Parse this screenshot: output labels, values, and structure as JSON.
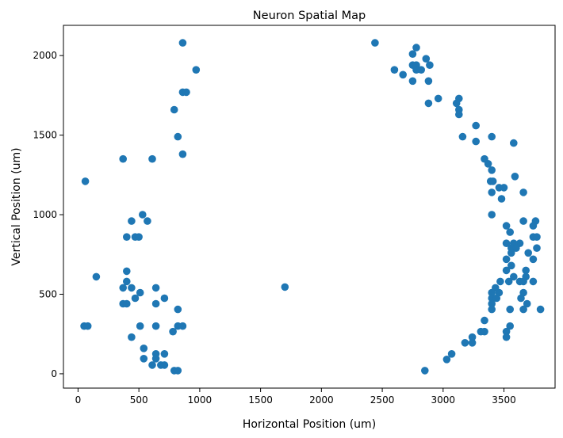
{
  "chart_data": {
    "type": "scatter",
    "title": "Neuron Spatial Map",
    "xlabel": "Horizontal Position (um)",
    "ylabel": "Vertical Position (um)",
    "xlim": [
      -120,
      3920
    ],
    "ylim": [
      -90,
      2190
    ],
    "xticks": [
      0,
      500,
      1000,
      1500,
      2000,
      2500,
      3000,
      3500
    ],
    "yticks": [
      0,
      500,
      1000,
      1500,
      2000
    ],
    "grid": false,
    "legend": "none",
    "marker_color": "#1f77b4",
    "series": [
      {
        "points": [
          [
            860,
            2080
          ],
          [
            970,
            1910
          ],
          [
            860,
            1770
          ],
          [
            890,
            1770
          ],
          [
            790,
            1660
          ],
          [
            820,
            1490
          ],
          [
            370,
            1350
          ],
          [
            610,
            1350
          ],
          [
            860,
            1380
          ],
          [
            60,
            1210
          ],
          [
            530,
            1000
          ],
          [
            440,
            960
          ],
          [
            570,
            960
          ],
          [
            400,
            860
          ],
          [
            470,
            860
          ],
          [
            500,
            860
          ],
          [
            150,
            610
          ],
          [
            400,
            645
          ],
          [
            400,
            580
          ],
          [
            370,
            540
          ],
          [
            440,
            540
          ],
          [
            640,
            540
          ],
          [
            510,
            510
          ],
          [
            470,
            475
          ],
          [
            710,
            475
          ],
          [
            370,
            440
          ],
          [
            400,
            440
          ],
          [
            640,
            440
          ],
          [
            820,
            405
          ],
          [
            50,
            300
          ],
          [
            80,
            300
          ],
          [
            510,
            300
          ],
          [
            640,
            300
          ],
          [
            820,
            300
          ],
          [
            860,
            300
          ],
          [
            780,
            265
          ],
          [
            440,
            230
          ],
          [
            540,
            160
          ],
          [
            640,
            125
          ],
          [
            710,
            125
          ],
          [
            540,
            95
          ],
          [
            640,
            95
          ],
          [
            610,
            55
          ],
          [
            680,
            55
          ],
          [
            710,
            55
          ],
          [
            790,
            20
          ],
          [
            820,
            20
          ],
          [
            1700,
            545
          ],
          [
            2440,
            2080
          ],
          [
            2780,
            2050
          ],
          [
            2750,
            2010
          ],
          [
            2860,
            1980
          ],
          [
            2750,
            1940
          ],
          [
            2780,
            1940
          ],
          [
            2890,
            1940
          ],
          [
            2780,
            1910
          ],
          [
            2600,
            1910
          ],
          [
            2820,
            1910
          ],
          [
            2670,
            1880
          ],
          [
            2750,
            1840
          ],
          [
            2880,
            1840
          ],
          [
            3130,
            1730
          ],
          [
            2960,
            1730
          ],
          [
            2880,
            1700
          ],
          [
            3110,
            1700
          ],
          [
            3130,
            1660
          ],
          [
            3130,
            1630
          ],
          [
            3270,
            1560
          ],
          [
            3160,
            1490
          ],
          [
            3400,
            1490
          ],
          [
            3270,
            1460
          ],
          [
            3580,
            1450
          ],
          [
            3340,
            1350
          ],
          [
            3370,
            1320
          ],
          [
            3400,
            1280
          ],
          [
            3590,
            1240
          ],
          [
            3390,
            1210
          ],
          [
            3410,
            1210
          ],
          [
            3460,
            1170
          ],
          [
            3500,
            1170
          ],
          [
            3400,
            1140
          ],
          [
            3660,
            1140
          ],
          [
            3480,
            1100
          ],
          [
            3400,
            1000
          ],
          [
            3660,
            960
          ],
          [
            3760,
            960
          ],
          [
            3520,
            930
          ],
          [
            3740,
            930
          ],
          [
            3550,
            890
          ],
          [
            3740,
            860
          ],
          [
            3770,
            860
          ],
          [
            3630,
            820
          ],
          [
            3520,
            820
          ],
          [
            3580,
            820
          ],
          [
            3560,
            790
          ],
          [
            3600,
            790
          ],
          [
            3770,
            790
          ],
          [
            3560,
            760
          ],
          [
            3700,
            760
          ],
          [
            3740,
            720
          ],
          [
            3520,
            720
          ],
          [
            3560,
            680
          ],
          [
            3520,
            650
          ],
          [
            3680,
            650
          ],
          [
            3580,
            610
          ],
          [
            3680,
            610
          ],
          [
            3470,
            580
          ],
          [
            3540,
            580
          ],
          [
            3630,
            580
          ],
          [
            3660,
            580
          ],
          [
            3740,
            580
          ],
          [
            3430,
            540
          ],
          [
            3400,
            510
          ],
          [
            3460,
            510
          ],
          [
            3660,
            510
          ],
          [
            3640,
            475
          ],
          [
            3400,
            475
          ],
          [
            3440,
            475
          ],
          [
            3690,
            440
          ],
          [
            3400,
            440
          ],
          [
            3400,
            405
          ],
          [
            3550,
            405
          ],
          [
            3660,
            405
          ],
          [
            3800,
            405
          ],
          [
            3340,
            335
          ],
          [
            3550,
            300
          ],
          [
            3310,
            265
          ],
          [
            3340,
            265
          ],
          [
            3520,
            265
          ],
          [
            3240,
            230
          ],
          [
            3520,
            230
          ],
          [
            3180,
            195
          ],
          [
            3240,
            195
          ],
          [
            3070,
            125
          ],
          [
            3030,
            90
          ],
          [
            2850,
            20
          ]
        ]
      }
    ]
  }
}
